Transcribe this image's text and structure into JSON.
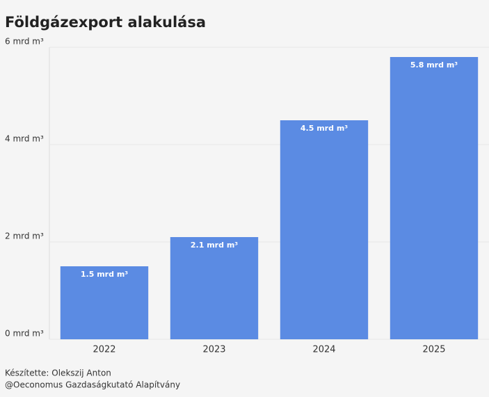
{
  "chart_data": {
    "type": "bar",
    "title": "Földgázexport alakulása",
    "categories": [
      "2022",
      "2023",
      "2024",
      "2025"
    ],
    "values": [
      1.5,
      2.1,
      4.5,
      5.8
    ],
    "value_labels": [
      "1.5 mrd m³",
      "2.1 mrd m³",
      "4.5 mrd m³",
      "5.8 mrd m³"
    ],
    "color": "#5b8be3",
    "ylim": [
      0,
      6
    ],
    "yticks": [
      {
        "value": 0,
        "label": "0 mrd m³"
      },
      {
        "value": 2,
        "label": "2 mrd m³"
      },
      {
        "value": 4,
        "label": "4 mrd m³"
      },
      {
        "value": 6,
        "label": "6 mrd m³"
      }
    ],
    "grid": true,
    "footer": [
      "Készítette: Olekszij Anton",
      "@Oeconomus Gazdaságkutató Alapítvány"
    ]
  }
}
